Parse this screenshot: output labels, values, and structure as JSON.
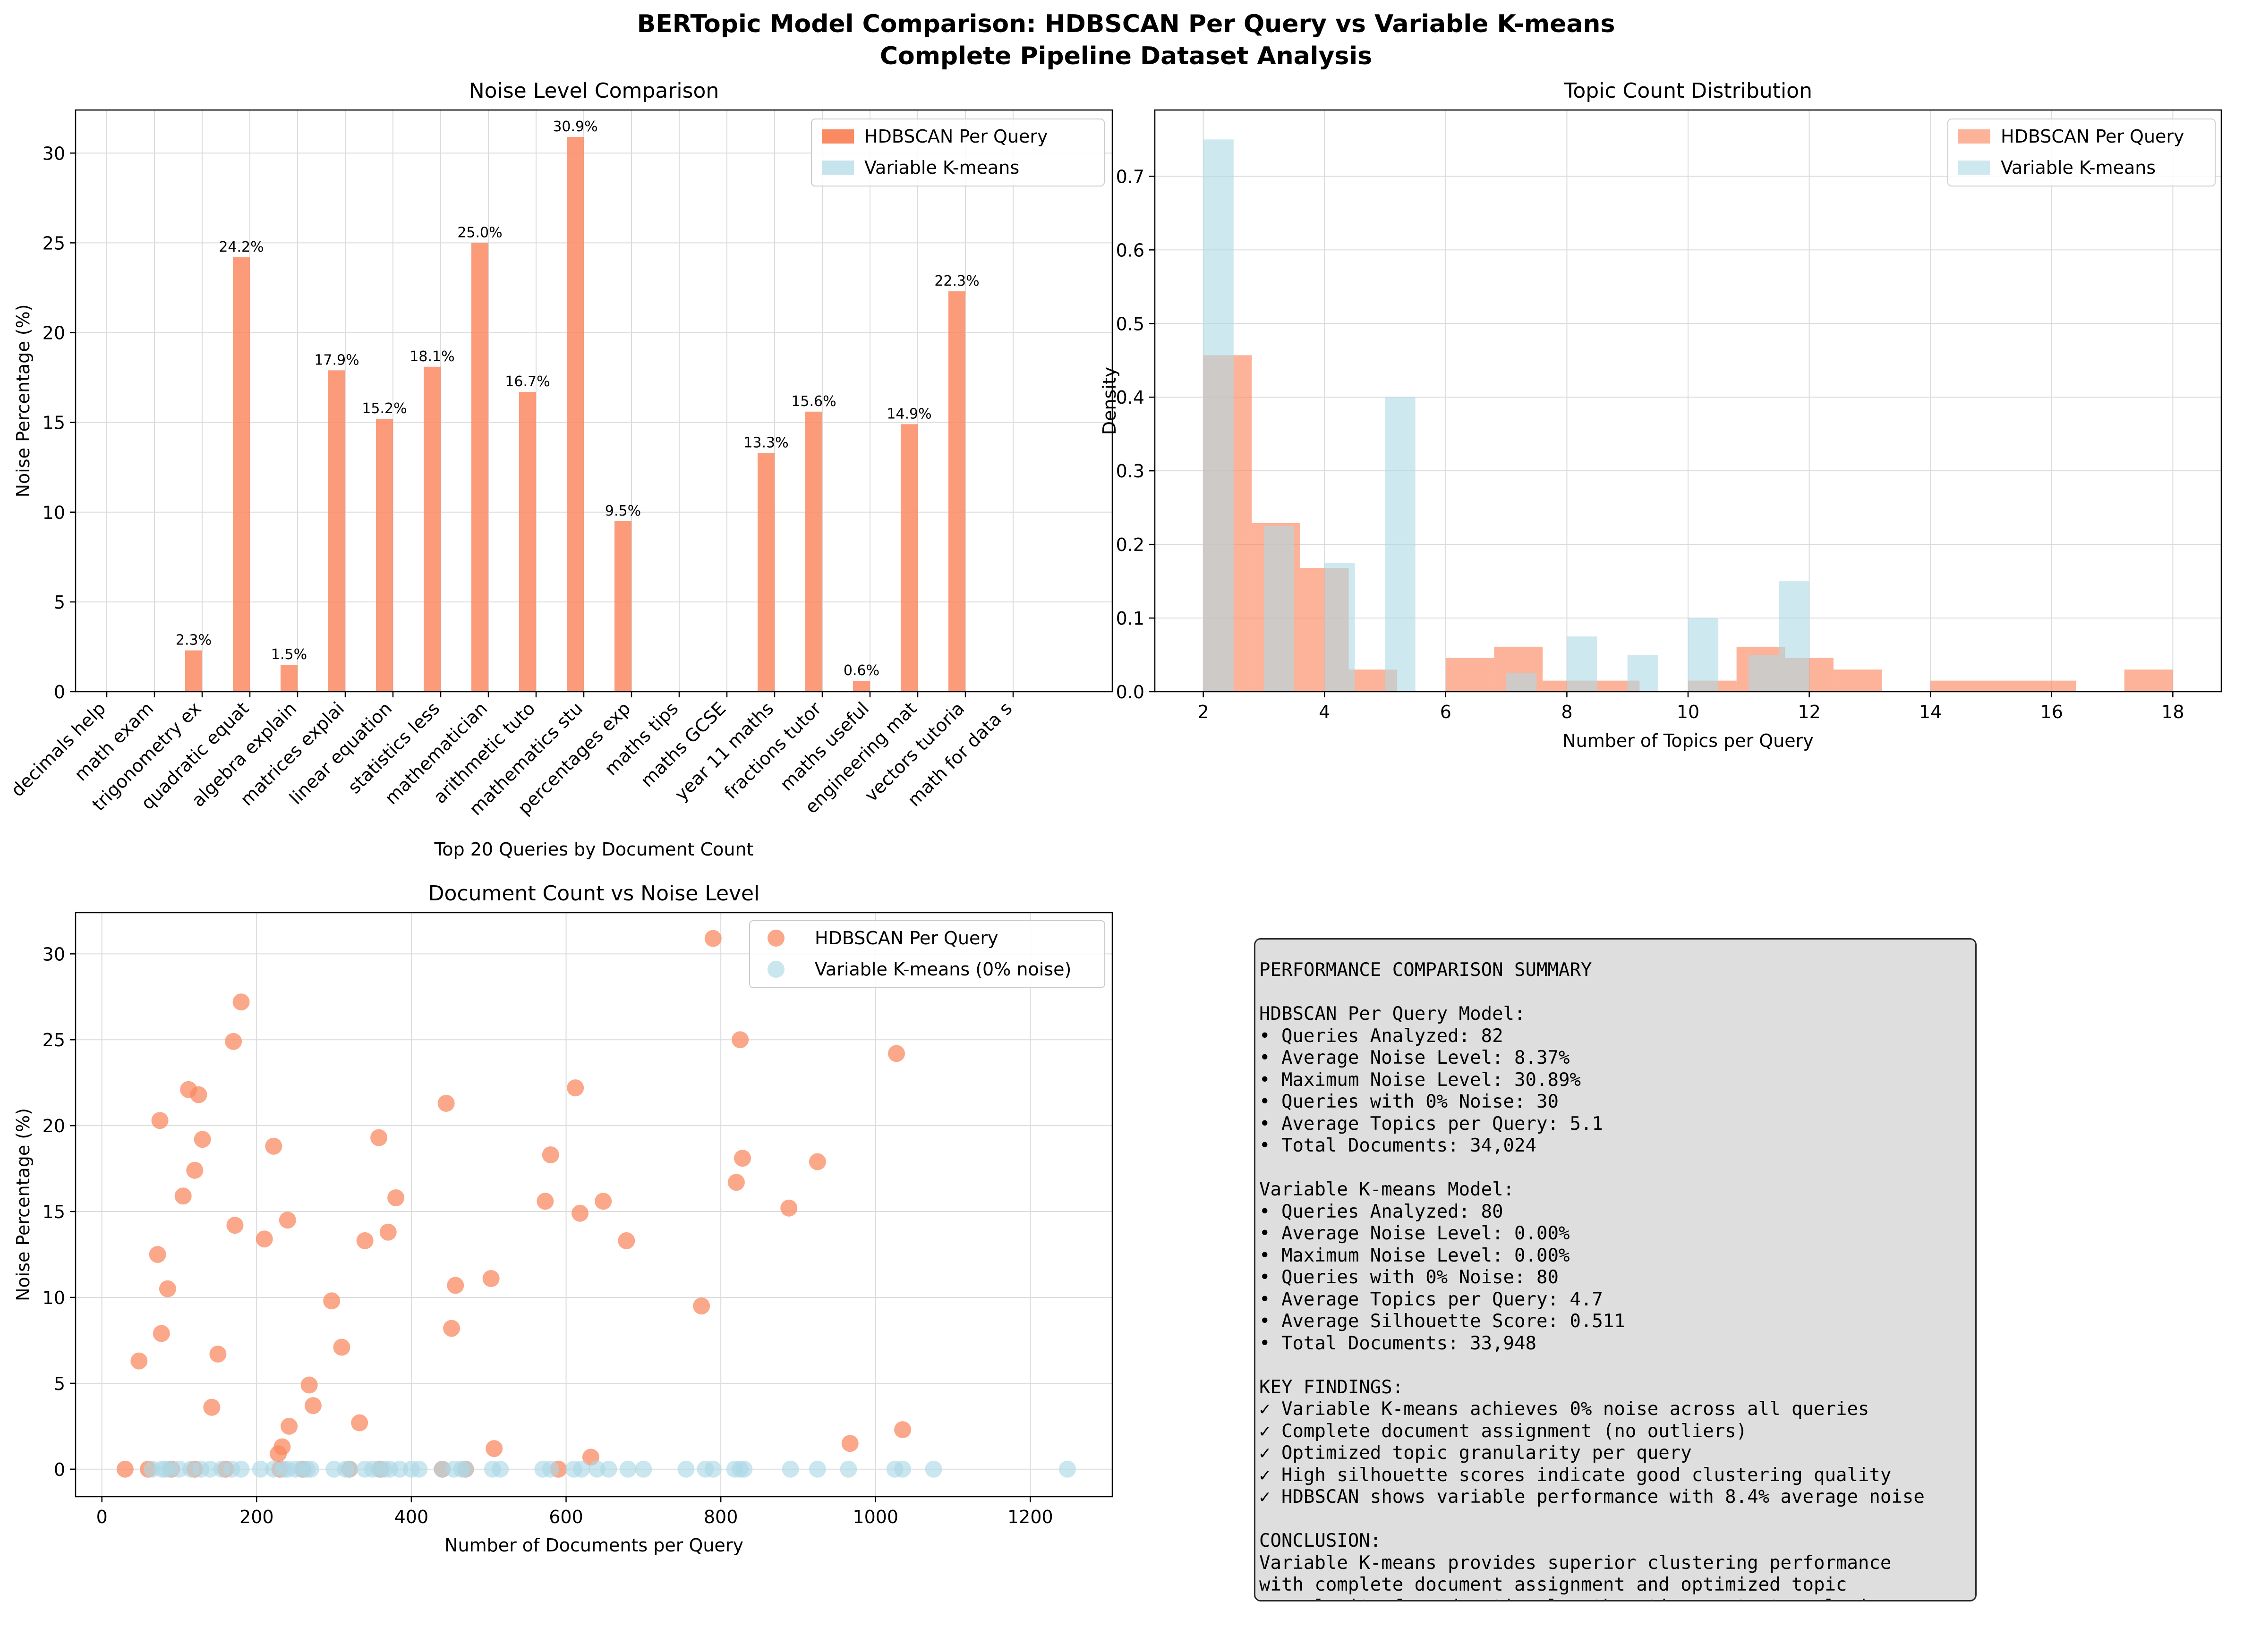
{
  "figure": {
    "title_line1": "BERTopic Model Comparison: HDBSCAN Per Query vs Variable K-means",
    "title_line2": "Complete Pipeline Dataset Analysis"
  },
  "colors": {
    "hdbscan": "#FA8A62",
    "kmeans": "#ADD8E6",
    "grid": "#dcdcdc"
  },
  "chart_data": [
    {
      "type": "bar",
      "title": "Noise Level Comparison",
      "xlabel": "Top 20 Queries by Document Count",
      "ylabel": "Noise Percentage (%)",
      "ylim": [
        0,
        32.4
      ],
      "yticks": [
        0,
        5,
        10,
        15,
        20,
        25,
        30
      ],
      "grid": true,
      "legend_position": "top-right",
      "categories": [
        "decimals help",
        "math exam",
        "trigonometry ex",
        "quadratic equat",
        "algebra explain",
        "matrices explai",
        "linear equation",
        "statistics less",
        "mathematician",
        "arithmetic tuto",
        "mathematics stu",
        "percentages exp",
        "maths tips",
        "maths GCSE",
        "year 11 maths",
        "fractions tutor",
        "maths useful",
        "engineering mat",
        "vectors tutoria",
        "math for data s"
      ],
      "series": [
        {
          "name": "HDBSCAN Per Query",
          "values": [
            0,
            0,
            2.3,
            24.2,
            1.5,
            17.9,
            15.2,
            18.1,
            25.0,
            16.7,
            30.9,
            9.5,
            0,
            0,
            13.3,
            15.6,
            0.6,
            14.9,
            22.3,
            0
          ]
        },
        {
          "name": "Variable K-means",
          "values": [
            0,
            0,
            0,
            0,
            0,
            0,
            0,
            0,
            0,
            0,
            0,
            0,
            0,
            0,
            0,
            0,
            0,
            0,
            0,
            0
          ]
        }
      ],
      "data_labels": [
        "",
        "",
        "2.3%",
        "24.2%",
        "1.5%",
        "17.9%",
        "15.2%",
        "18.1%",
        "25.0%",
        "16.7%",
        "30.9%",
        "9.5%",
        "",
        "",
        "13.3%",
        "15.6%",
        "0.6%",
        "14.9%",
        "22.3%",
        ""
      ]
    },
    {
      "type": "histogram",
      "title": "Topic Count Distribution",
      "xlabel": "Number of Topics per Query",
      "ylabel": "Density",
      "xlim": [
        1.2,
        18.8
      ],
      "ylim": [
        0,
        0.79
      ],
      "xticks": [
        2,
        4,
        6,
        8,
        10,
        12,
        14,
        16,
        18
      ],
      "yticks": [
        0.0,
        0.1,
        0.2,
        0.3,
        0.4,
        0.5,
        0.6,
        0.7
      ],
      "grid": true,
      "legend_position": "top-right",
      "series": [
        {
          "name": "HDBSCAN Per Query",
          "bin_edges": [
            2.0,
            2.8,
            3.6,
            4.4,
            5.2,
            6.0,
            6.8,
            7.6,
            8.4,
            9.2,
            10.0,
            10.8,
            11.6,
            12.4,
            13.2,
            14.0,
            14.8,
            15.6,
            16.4,
            17.2,
            18.0
          ],
          "values": [
            0.457,
            0.229,
            0.168,
            0.03,
            0.0,
            0.046,
            0.061,
            0.015,
            0.015,
            0.0,
            0.015,
            0.061,
            0.046,
            0.03,
            0.0,
            0.015,
            0.015,
            0.015,
            0.0,
            0.03
          ]
        },
        {
          "name": "Variable K-means",
          "bin_edges": [
            2.0,
            2.5,
            3.0,
            3.5,
            4.0,
            4.5,
            5.0,
            5.5,
            6.0,
            6.5,
            7.0,
            7.5,
            8.0,
            8.5,
            9.0,
            9.5,
            10.0,
            10.5,
            11.0,
            11.5,
            12.0
          ],
          "values": [
            0.75,
            0.0,
            0.225,
            0.0,
            0.175,
            0.0,
            0.4,
            0.0,
            0.0,
            0.0,
            0.025,
            0.0,
            0.075,
            0.0,
            0.05,
            0.0,
            0.1,
            0.0,
            0.05,
            0.15
          ]
        }
      ]
    },
    {
      "type": "scatter",
      "title": "Document Count vs Noise Level",
      "xlabel": "Number of Documents per Query",
      "ylabel": "Noise Percentage (%)",
      "xlim": [
        -34,
        1306
      ],
      "ylim": [
        -1.6,
        32.4
      ],
      "xticks": [
        0,
        200,
        400,
        600,
        800,
        1000,
        1200
      ],
      "yticks": [
        0,
        5,
        10,
        15,
        20,
        25,
        30
      ],
      "grid": true,
      "legend_position": "top-right",
      "series": [
        {
          "name": "HDBSCAN Per Query",
          "points": [
            [
              30,
              0
            ],
            [
              48,
              6.3
            ],
            [
              72,
              12.5
            ],
            [
              75,
              20.3
            ],
            [
              77,
              7.9
            ],
            [
              85,
              10.5
            ],
            [
              105,
              15.9
            ],
            [
              112,
              22.1
            ],
            [
              120,
              17.4
            ],
            [
              125,
              21.8
            ],
            [
              130,
              19.2
            ],
            [
              142,
              3.6
            ],
            [
              150,
              6.7
            ],
            [
              170,
              24.9
            ],
            [
              172,
              14.2
            ],
            [
              180,
              27.2
            ],
            [
              210,
              13.4
            ],
            [
              222,
              18.8
            ],
            [
              228,
              0.9
            ],
            [
              233,
              1.3
            ],
            [
              240,
              14.5
            ],
            [
              242,
              2.5
            ],
            [
              268,
              4.9
            ],
            [
              273,
              3.7
            ],
            [
              297,
              9.8
            ],
            [
              310,
              7.1
            ],
            [
              333,
              2.7
            ],
            [
              340,
              13.3
            ],
            [
              358,
              19.3
            ],
            [
              370,
              13.8
            ],
            [
              380,
              15.8
            ],
            [
              445,
              21.3
            ],
            [
              452,
              8.2
            ],
            [
              457,
              10.7
            ],
            [
              503,
              11.1
            ],
            [
              507,
              1.2
            ],
            [
              573,
              15.6
            ],
            [
              580,
              18.3
            ],
            [
              612,
              22.2
            ],
            [
              618,
              14.9
            ],
            [
              632,
              0.7
            ],
            [
              648,
              15.6
            ],
            [
              678,
              13.3
            ],
            [
              775,
              9.5
            ],
            [
              790,
              30.9
            ],
            [
              820,
              16.7
            ],
            [
              825,
              25.0
            ],
            [
              828,
              18.1
            ],
            [
              888,
              15.2
            ],
            [
              925,
              17.9
            ],
            [
              967,
              1.5
            ],
            [
              1027,
              24.2
            ],
            [
              1035,
              2.3
            ],
            [
              60,
              0
            ],
            [
              90,
              0
            ],
            [
              120,
              0
            ],
            [
              160,
              0
            ],
            [
              230,
              0
            ],
            [
              260,
              0
            ],
            [
              320,
              0
            ],
            [
              360,
              0
            ],
            [
              440,
              0
            ],
            [
              470,
              0
            ],
            [
              590,
              0
            ]
          ]
        },
        {
          "name": "Variable K-means (0% noise)",
          "points": [
            [
              65,
              0
            ],
            [
              78,
              0
            ],
            [
              82,
              0
            ],
            [
              88,
              0
            ],
            [
              100,
              0
            ],
            [
              115,
              0
            ],
            [
              128,
              0
            ],
            [
              140,
              0
            ],
            [
              155,
              0
            ],
            [
              168,
              0
            ],
            [
              180,
              0
            ],
            [
              205,
              0
            ],
            [
              222,
              0
            ],
            [
              235,
              0
            ],
            [
              240,
              0
            ],
            [
              250,
              0
            ],
            [
              258,
              0
            ],
            [
              265,
              0
            ],
            [
              270,
              0
            ],
            [
              300,
              0
            ],
            [
              315,
              0
            ],
            [
              320,
              0
            ],
            [
              340,
              0
            ],
            [
              350,
              0
            ],
            [
              358,
              0
            ],
            [
              365,
              0
            ],
            [
              372,
              0
            ],
            [
              385,
              0
            ],
            [
              400,
              0
            ],
            [
              410,
              0
            ],
            [
              440,
              0
            ],
            [
              455,
              0
            ],
            [
              465,
              0
            ],
            [
              470,
              0
            ],
            [
              505,
              0
            ],
            [
              515,
              0
            ],
            [
              570,
              0
            ],
            [
              580,
              0
            ],
            [
              610,
              0
            ],
            [
              620,
              0
            ],
            [
              640,
              0
            ],
            [
              655,
              0
            ],
            [
              680,
              0
            ],
            [
              700,
              0
            ],
            [
              755,
              0
            ],
            [
              780,
              0
            ],
            [
              790,
              0
            ],
            [
              818,
              0
            ],
            [
              825,
              0
            ],
            [
              830,
              0
            ],
            [
              890,
              0
            ],
            [
              925,
              0
            ],
            [
              965,
              0
            ],
            [
              1025,
              0
            ],
            [
              1035,
              0
            ],
            [
              1075,
              0
            ],
            [
              1248,
              0
            ]
          ]
        }
      ]
    }
  ],
  "summary": {
    "lines": [
      "PERFORMANCE COMPARISON SUMMARY",
      "",
      "HDBSCAN Per Query Model:",
      "• Queries Analyzed: 82",
      "• Average Noise Level: 8.37%",
      "• Maximum Noise Level: 30.89%",
      "• Queries with 0% Noise: 30",
      "• Average Topics per Query: 5.1",
      "• Total Documents: 34,024",
      "",
      "Variable K-means Model:",
      "• Queries Analyzed: 80",
      "• Average Noise Level: 0.00%",
      "• Maximum Noise Level: 0.00%",
      "• Queries with 0% Noise: 80",
      "• Average Topics per Query: 4.7",
      "• Average Silhouette Score: 0.511",
      "• Total Documents: 33,948",
      "",
      "KEY FINDINGS:",
      "✓ Variable K-means achieves 0% noise across all queries",
      "✓ Complete document assignment (no outliers)",
      "✓ Optimized topic granularity per query",
      "✓ High silhouette scores indicate good clustering quality",
      "✓ HDBSCAN shows variable performance with 8.4% average noise",
      "",
      "CONCLUSION:",
      "Variable K-means provides superior clustering performance",
      "with complete document assignment and optimized topic",
      "granularity for educational mathematics content analysis."
    ]
  }
}
